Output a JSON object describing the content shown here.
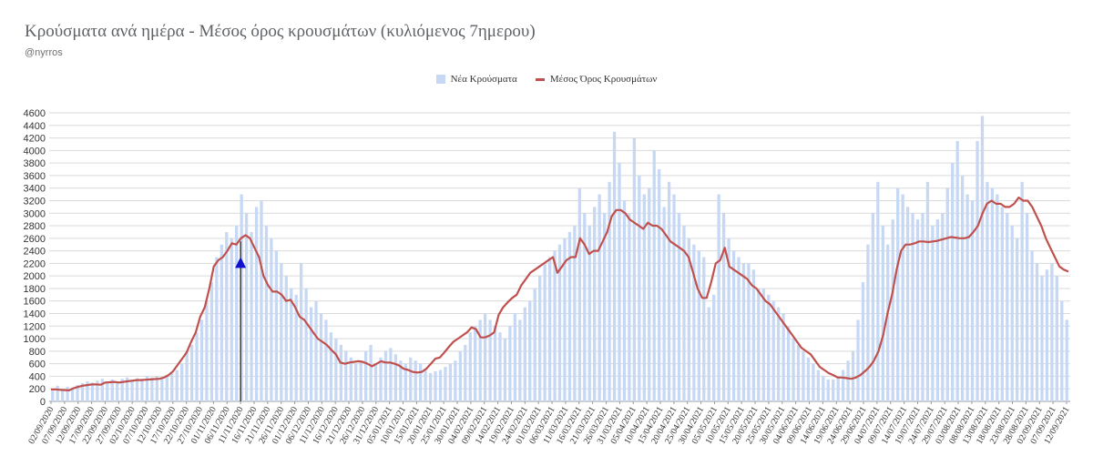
{
  "title": "Κρούσματα ανά ημέρα - Μέσος όρος κρουσμάτων (κυλιόμενος 7ημερου)",
  "subtitle": "@nyrros",
  "legend": {
    "bars": "Νέα Κρούσματα",
    "line": "Μέσος Όρος Κρουσμάτων"
  },
  "colors": {
    "bars": "#c6d8f3",
    "line": "#c0504d",
    "marker": "#1010d0",
    "grid": "#d9d9d9"
  },
  "chart_data": {
    "type": "bar",
    "ylim": [
      0,
      4600
    ],
    "yticks": [
      0,
      200,
      400,
      600,
      800,
      1000,
      1200,
      1400,
      1600,
      1800,
      2000,
      2200,
      2400,
      2600,
      2800,
      3000,
      3200,
      3400,
      3600,
      3800,
      4000,
      4200,
      4400,
      4600
    ],
    "xticks": [
      "02/09/2020",
      "07/09/2020",
      "12/09/2020",
      "17/09/2020",
      "22/09/2020",
      "27/09/2020",
      "02/10/2020",
      "07/10/2020",
      "12/10/2020",
      "17/10/2020",
      "22/10/2020",
      "27/10/2020",
      "01/11/2020",
      "06/11/2020",
      "11/11/2020",
      "16/11/2020",
      "21/11/2020",
      "26/11/2020",
      "01/12/2020",
      "06/12/2020",
      "11/12/2020",
      "16/12/2020",
      "21/12/2020",
      "26/12/2020",
      "31/12/2020",
      "05/01/2021",
      "10/01/2021",
      "15/01/2021",
      "20/01/2021",
      "25/01/2021",
      "30/01/2021",
      "04/02/2021",
      "09/02/2021",
      "14/02/2021",
      "19/02/2021",
      "24/02/2021",
      "01/03/2021",
      "06/03/2021",
      "11/03/2021",
      "16/03/2021",
      "21/03/2021",
      "26/03/2021",
      "31/03/2021",
      "05/04/2021",
      "10/04/2021",
      "15/04/2021",
      "20/04/2021",
      "25/04/2021",
      "30/04/2021",
      "05/05/2021",
      "10/05/2021",
      "15/05/2021",
      "20/05/2021",
      "25/05/2021",
      "30/05/2021",
      "04/06/2021",
      "09/06/2021",
      "14/06/2021",
      "19/06/2021",
      "24/06/2021",
      "29/06/2021",
      "04/07/2021",
      "09/07/2021",
      "14/07/2021",
      "19/07/2021",
      "24/07/2021",
      "29/07/2021",
      "03/08/2021",
      "08/08/2021",
      "13/08/2021",
      "18/08/2021",
      "23/08/2021",
      "28/08/2021",
      "02/09/2021",
      "07/09/2021",
      "12/09/2021"
    ],
    "series": [
      {
        "name": "Μέσος Όρος Κρουσμάτων",
        "type": "line",
        "values": [
          190,
          190,
          185,
          180,
          175,
          210,
          230,
          250,
          260,
          270,
          270,
          265,
          300,
          305,
          310,
          300,
          310,
          320,
          330,
          340,
          340,
          345,
          350,
          355,
          360,
          380,
          420,
          480,
          580,
          680,
          780,
          950,
          1100,
          1350,
          1500,
          1800,
          2150,
          2250,
          2300,
          2400,
          2520,
          2500,
          2600,
          2650,
          2600,
          2450,
          2300,
          2000,
          1850,
          1750,
          1750,
          1700,
          1600,
          1620,
          1500,
          1350,
          1300,
          1200,
          1100,
          1000,
          950,
          900,
          820,
          750,
          620,
          600,
          620,
          630,
          640,
          630,
          600,
          560,
          600,
          640,
          620,
          620,
          600,
          570,
          520,
          500,
          470,
          460,
          470,
          520,
          600,
          680,
          700,
          780,
          870,
          950,
          1000,
          1050,
          1100,
          1180,
          1150,
          1020,
          1020,
          1050,
          1100,
          1380,
          1500,
          1580,
          1650,
          1700,
          1850,
          1950,
          2050,
          2100,
          2150,
          2200,
          2250,
          2300,
          2050,
          2150,
          2250,
          2300,
          2300,
          2600,
          2500,
          2350,
          2400,
          2400,
          2550,
          2700,
          2950,
          3050,
          3050,
          3000,
          2900,
          2850,
          2800,
          2750,
          2850,
          2800,
          2800,
          2750,
          2650,
          2550,
          2500,
          2450,
          2400,
          2300,
          2050,
          1800,
          1650,
          1650,
          1900,
          2200,
          2250,
          2450,
          2150,
          2100,
          2050,
          2000,
          1950,
          1850,
          1800,
          1700,
          1600,
          1550,
          1450,
          1350,
          1250,
          1150,
          1050,
          950,
          850,
          800,
          750,
          650,
          550,
          500,
          450,
          420,
          380,
          380,
          370,
          360,
          380,
          420,
          480,
          550,
          650,
          800,
          1050,
          1400,
          1700,
          2100,
          2400,
          2500,
          2500,
          2520,
          2550,
          2550,
          2540,
          2550,
          2560,
          2580,
          2600,
          2620,
          2610,
          2600,
          2600,
          2620,
          2700,
          2800,
          3000,
          3150,
          3200,
          3150,
          3150,
          3100,
          3100,
          3150,
          3250,
          3200,
          3200,
          3100,
          2950,
          2800,
          2600,
          2450,
          2300,
          2150,
          2100,
          2070
        ]
      },
      {
        "name": "Νέα Κρούσματα",
        "type": "bar",
        "values": [
          170,
          250,
          180,
          230,
          200,
          260,
          290,
          320,
          300,
          330,
          360,
          320,
          350,
          320,
          360,
          380,
          350,
          370,
          360,
          400,
          380,
          400,
          380,
          420,
          450,
          500,
          600,
          800,
          900,
          1100,
          1300,
          1600,
          1900,
          2300,
          2500,
          2700,
          2600,
          2800,
          3300,
          3000,
          2700,
          3100,
          3200,
          2800,
          2600,
          2400,
          2200,
          2000,
          1800,
          1700,
          2200,
          1800,
          1500,
          1600,
          1400,
          1300,
          1100,
          1000,
          900,
          800,
          700,
          600,
          650,
          800,
          900,
          600,
          700,
          800,
          850,
          750,
          650,
          600,
          700,
          650,
          600,
          500,
          450,
          480,
          500,
          550,
          600,
          650,
          800,
          900,
          1100,
          1200,
          1300,
          1400,
          1300,
          1200,
          1100,
          1000,
          1200,
          1400,
          1300,
          1500,
          1600,
          1800,
          2000,
          2200,
          2300,
          2400,
          2500,
          2600,
          2700,
          2800,
          3400,
          3000,
          2800,
          3100,
          3300,
          3000,
          3500,
          4300,
          3800,
          3200,
          3000,
          4200,
          3600,
          3300,
          3400,
          4000,
          3700,
          3100,
          3500,
          3300,
          3000,
          2800,
          2600,
          2500,
          2400,
          2300,
          1500,
          1700,
          3300,
          3000,
          2600,
          2400,
          2300,
          2200,
          2200,
          2100,
          1800,
          1800,
          1700,
          1600,
          1500,
          1400,
          1200,
          1000,
          900,
          800,
          700,
          600,
          500,
          400,
          350,
          350,
          400,
          500,
          650,
          800,
          1300,
          1900,
          2500,
          3000,
          3500,
          2800,
          2500,
          2900,
          3400,
          3300,
          3100,
          3000,
          2900,
          3000,
          3500,
          2800,
          2900,
          3000,
          3400,
          3800,
          4150,
          3600,
          3300,
          3200,
          4150,
          4550,
          3500,
          3400,
          3300,
          3100,
          3000,
          2800,
          2600,
          3500,
          3000,
          2400,
          2200,
          2000,
          2100,
          2200,
          2000,
          1600,
          1300
        ]
      }
    ],
    "annotation": {
      "type": "marker-line",
      "date": "11/11/2020",
      "value": 2200,
      "line_top": 2550
    }
  }
}
